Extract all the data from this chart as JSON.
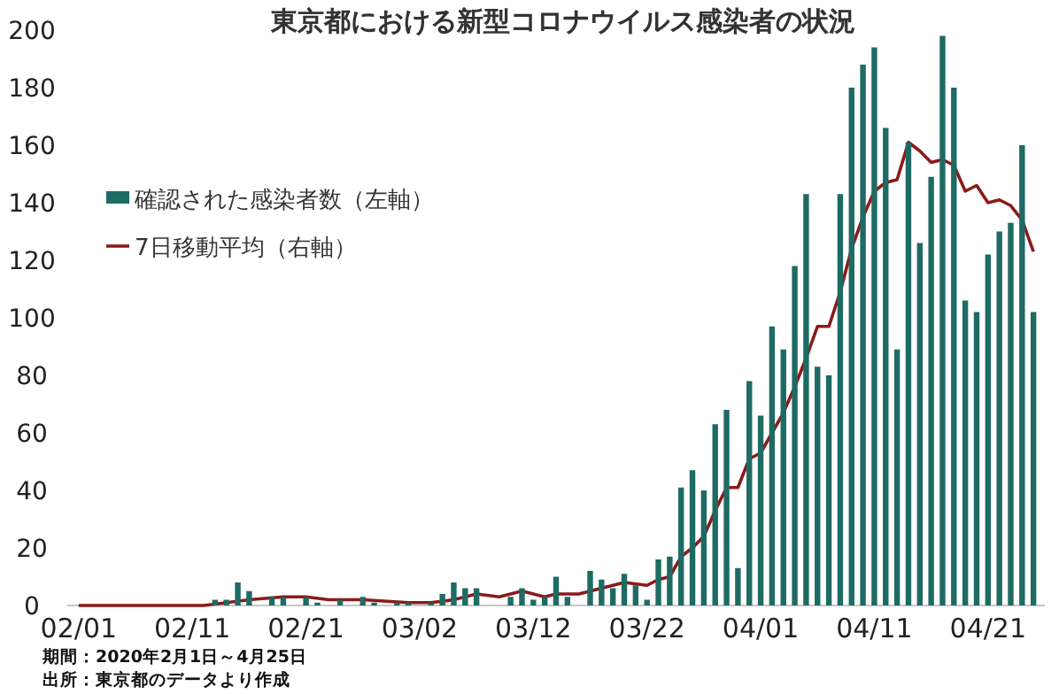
{
  "chart_data": {
    "type": "bar",
    "title": "東京都における新型コロナウイルス感染者の状況",
    "annotations": [
      "期間：2020年2月1日～4月25日",
      "出所：東京都のデータより作成"
    ],
    "x": [
      "2020-02-01",
      "2020-02-02",
      "2020-02-03",
      "2020-02-04",
      "2020-02-05",
      "2020-02-06",
      "2020-02-07",
      "2020-02-08",
      "2020-02-09",
      "2020-02-10",
      "2020-02-11",
      "2020-02-12",
      "2020-02-13",
      "2020-02-14",
      "2020-02-15",
      "2020-02-16",
      "2020-02-17",
      "2020-02-18",
      "2020-02-19",
      "2020-02-20",
      "2020-02-21",
      "2020-02-22",
      "2020-02-23",
      "2020-02-24",
      "2020-02-25",
      "2020-02-26",
      "2020-02-27",
      "2020-02-28",
      "2020-02-29",
      "2020-03-01",
      "2020-03-02",
      "2020-03-03",
      "2020-03-04",
      "2020-03-05",
      "2020-03-06",
      "2020-03-07",
      "2020-03-08",
      "2020-03-09",
      "2020-03-10",
      "2020-03-11",
      "2020-03-12",
      "2020-03-13",
      "2020-03-14",
      "2020-03-15",
      "2020-03-16",
      "2020-03-17",
      "2020-03-18",
      "2020-03-19",
      "2020-03-20",
      "2020-03-21",
      "2020-03-22",
      "2020-03-23",
      "2020-03-24",
      "2020-03-25",
      "2020-03-26",
      "2020-03-27",
      "2020-03-28",
      "2020-03-29",
      "2020-03-30",
      "2020-03-31",
      "2020-04-01",
      "2020-04-02",
      "2020-04-03",
      "2020-04-04",
      "2020-04-05",
      "2020-04-06",
      "2020-04-07",
      "2020-04-08",
      "2020-04-09",
      "2020-04-10",
      "2020-04-11",
      "2020-04-12",
      "2020-04-13",
      "2020-04-14",
      "2020-04-15",
      "2020-04-16",
      "2020-04-17",
      "2020-04-18",
      "2020-04-19",
      "2020-04-20",
      "2020-04-21",
      "2020-04-22",
      "2020-04-23",
      "2020-04-24",
      "2020-04-25"
    ],
    "series": [
      {
        "name": "確認された感染者数（左軸）",
        "color": "#1e6b63",
        "values": [
          0,
          0,
          0,
          0,
          0,
          0,
          0,
          0,
          0,
          0,
          0,
          0,
          2,
          2,
          8,
          5,
          0,
          3,
          3,
          0,
          3,
          1,
          0,
          2,
          0,
          3,
          1,
          0,
          1,
          1,
          0,
          1,
          4,
          8,
          6,
          6,
          0,
          0,
          3,
          6,
          2,
          3,
          10,
          3,
          0,
          12,
          9,
          6,
          11,
          7,
          2,
          16,
          17,
          41,
          47,
          40,
          63,
          68,
          13,
          78,
          66,
          97,
          89,
          118,
          143,
          83,
          80,
          143,
          180,
          188,
          194,
          166,
          89,
          161,
          126,
          149,
          198,
          180,
          106,
          102,
          122,
          130,
          133,
          160,
          102
        ]
      },
      {
        "name": "7日移動平均（右軸）",
        "type": "line",
        "color": "#8b1a1a",
        "x": [
          "2020-02-01",
          "2020-02-12",
          "2020-02-16",
          "2020-02-19",
          "2020-02-21",
          "2020-02-23",
          "2020-02-26",
          "2020-03-01",
          "2020-03-03",
          "2020-03-05",
          "2020-03-07",
          "2020-03-09",
          "2020-03-11",
          "2020-03-13",
          "2020-03-14",
          "2020-03-16",
          "2020-03-17",
          "2020-03-19",
          "2020-03-20",
          "2020-03-22",
          "2020-03-23",
          "2020-03-24",
          "2020-03-25",
          "2020-03-26",
          "2020-03-27",
          "2020-03-28",
          "2020-03-29",
          "2020-03-30",
          "2020-03-31",
          "2020-04-01",
          "2020-04-02",
          "2020-04-03",
          "2020-04-04",
          "2020-04-05",
          "2020-04-06",
          "2020-04-07",
          "2020-04-08",
          "2020-04-09",
          "2020-04-10",
          "2020-04-11",
          "2020-04-12",
          "2020-04-13",
          "2020-04-14",
          "2020-04-15",
          "2020-04-16",
          "2020-04-17",
          "2020-04-18",
          "2020-04-19",
          "2020-04-20",
          "2020-04-21",
          "2020-04-22",
          "2020-04-23",
          "2020-04-24",
          "2020-04-25"
        ],
        "values": [
          0,
          0,
          2,
          3,
          3,
          2,
          2,
          1,
          1,
          2,
          4,
          3,
          5,
          3,
          4,
          4,
          5,
          7,
          8,
          7,
          9,
          10,
          17,
          20,
          24,
          33,
          41,
          41,
          51,
          53,
          60,
          67,
          76,
          86,
          97,
          97,
          109,
          124,
          135,
          144,
          147,
          148,
          161,
          158,
          154,
          155,
          153,
          144,
          146,
          140,
          141,
          139,
          134,
          123
        ]
      }
    ],
    "xlim": [
      "2020-01-31",
      "2020-04-26"
    ],
    "xticks": [
      {
        "value": "2020-02-01",
        "label": "02/01"
      },
      {
        "value": "2020-02-11",
        "label": "02/11"
      },
      {
        "value": "2020-02-21",
        "label": "02/21"
      },
      {
        "value": "2020-03-02",
        "label": "03/02"
      },
      {
        "value": "2020-03-12",
        "label": "03/12"
      },
      {
        "value": "2020-03-22",
        "label": "03/22"
      },
      {
        "value": "2020-04-01",
        "label": "04/01"
      },
      {
        "value": "2020-04-11",
        "label": "04/11"
      },
      {
        "value": "2020-04-21",
        "label": "04/21"
      }
    ],
    "ylim": [
      0,
      200
    ],
    "yticks": [
      0,
      20,
      40,
      60,
      80,
      100,
      120,
      140,
      160,
      180,
      200
    ],
    "legend": "top left"
  }
}
